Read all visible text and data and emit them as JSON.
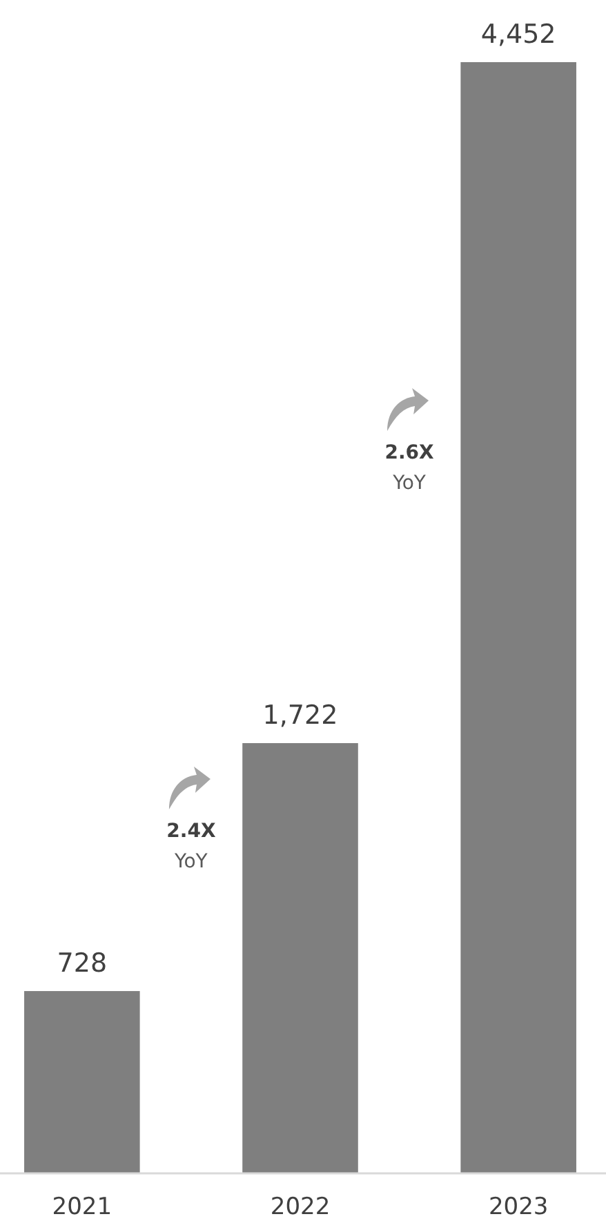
{
  "chart_data": {
    "type": "bar",
    "categories": [
      "2021",
      "2022",
      "2023"
    ],
    "values": [
      728,
      1722,
      4452
    ],
    "color": "#7f7f7f",
    "value_labels": [
      "728",
      "1,722",
      "4,452"
    ],
    "annotations": [
      "2.4X",
      "YoY",
      "2.6X",
      "YoY"
    ]
  }
}
